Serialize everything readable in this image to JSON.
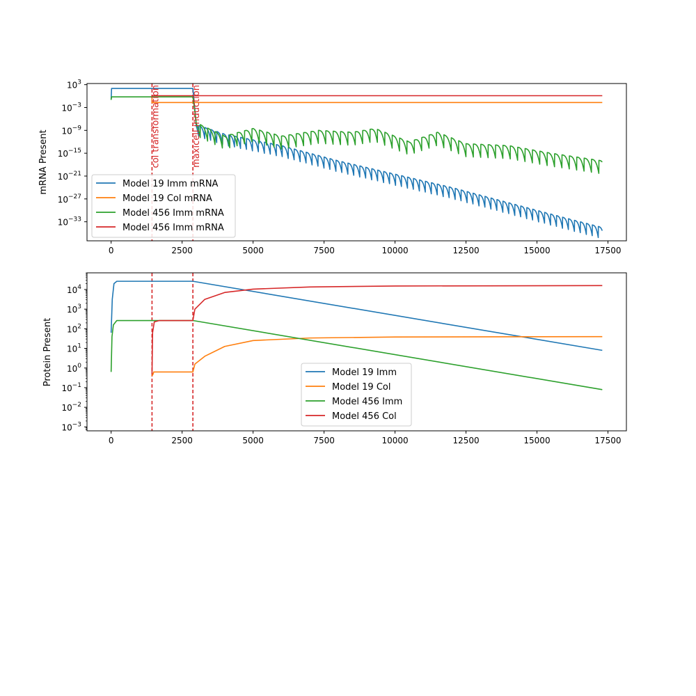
{
  "chart_data": [
    {
      "type": "line",
      "ylabel": "mRNA Present",
      "xlabel": "",
      "yscale": "log",
      "xlim": [
        -850,
        18150
      ],
      "ylim_exp": [
        -38,
        3.3
      ],
      "xticks": [
        0,
        2500,
        5000,
        7500,
        10000,
        12500,
        15000,
        17500
      ],
      "xtick_labels": [
        "0",
        "2500",
        "5000",
        "7500",
        "10000",
        "12500",
        "15000",
        "17500"
      ],
      "yticks_exp": [
        3,
        -3,
        -9,
        -15,
        -21,
        -27,
        -33
      ],
      "ytick_labels": [
        {
          "base": "10",
          "exp": "3"
        },
        {
          "base": "10",
          "exp": "−3"
        },
        {
          "base": "10",
          "exp": "−9"
        },
        {
          "base": "10",
          "exp": "−15"
        },
        {
          "base": "10",
          "exp": "−21"
        },
        {
          "base": "10",
          "exp": "−27"
        },
        {
          "base": "10",
          "exp": "−33"
        }
      ],
      "legend_position": "lower-left",
      "vlines": [
        {
          "x": 1440,
          "label": "col transformation",
          "color": "#d62728"
        },
        {
          "x": 2880,
          "label": "maxicell induction",
          "color": "#d62728"
        }
      ],
      "series": [
        {
          "name": "Model 19 Imm mRNA",
          "color": "#1f77b4",
          "kind": "decay_osc",
          "flat_start": 0,
          "flat_end": 2880,
          "flat_log": 2.0,
          "rise_start": -1.0,
          "decay_points": [
            [
              2880,
              2.0
            ],
            [
              3000,
              -7.5
            ],
            [
              4000,
              -10.0
            ],
            [
              6000,
              -13.0
            ],
            [
              8000,
              -17.0
            ],
            [
              10000,
              -20.5
            ],
            [
              12000,
              -24.0
            ],
            [
              14000,
              -28.0
            ],
            [
              16000,
              -32.0
            ],
            [
              17300,
              -34.5
            ]
          ],
          "osc_period": 210,
          "osc_depth": 3.0
        },
        {
          "name": "Model 19 Col mRNA",
          "color": "#ff7f0e",
          "kind": "step",
          "points": [
            [
              1440,
              -0.5
            ],
            [
              1440,
              -1.7
            ],
            [
              17300,
              -1.7
            ]
          ]
        },
        {
          "name": "Model 456 Imm mRNA",
          "color": "#2ca02c",
          "kind": "decay_osc",
          "flat_start": 0,
          "flat_end": 2880,
          "flat_log": -0.2,
          "rise_start": -1.0,
          "decay_points": [
            [
              2880,
              -0.2
            ],
            [
              3000,
              -7.0
            ],
            [
              4000,
              -10.5
            ],
            [
              5000,
              -8.5
            ],
            [
              6000,
              -10.5
            ],
            [
              7300,
              -9.0
            ],
            [
              8500,
              -9.5
            ],
            [
              9300,
              -8.5
            ],
            [
              10500,
              -12.0
            ],
            [
              11500,
              -9.5
            ],
            [
              12500,
              -12.5
            ],
            [
              14000,
              -13.0
            ],
            [
              15500,
              -15.0
            ],
            [
              17300,
              -17.0
            ]
          ],
          "osc_period": 260,
          "osc_depth": 3.5
        },
        {
          "name": "Model 456 Imm mRNA",
          "color": "#d62728",
          "kind": "step",
          "points": [
            [
              1440,
              -0.2
            ],
            [
              1440,
              0.1
            ],
            [
              17300,
              0.1
            ]
          ]
        }
      ]
    },
    {
      "type": "line",
      "ylabel": "Protein Present",
      "xlabel": "",
      "yscale": "log",
      "xlim": [
        -850,
        18150
      ],
      "ylim_exp": [
        -3.2,
        4.85
      ],
      "xticks": [
        0,
        2500,
        5000,
        7500,
        10000,
        12500,
        15000,
        17500
      ],
      "xtick_labels": [
        "0",
        "2500",
        "5000",
        "7500",
        "10000",
        "12500",
        "15000",
        "17500"
      ],
      "yticks_exp": [
        4,
        3,
        2,
        1,
        0,
        -1,
        -2,
        -3
      ],
      "ytick_labels": [
        {
          "base": "10",
          "exp": "4"
        },
        {
          "base": "10",
          "exp": "3"
        },
        {
          "base": "10",
          "exp": "2"
        },
        {
          "base": "10",
          "exp": "1"
        },
        {
          "base": "10",
          "exp": "0"
        },
        {
          "base": "10",
          "exp": "−1"
        },
        {
          "base": "10",
          "exp": "−2"
        },
        {
          "base": "10",
          "exp": "−3"
        }
      ],
      "legend_position": "center",
      "vlines": [
        {
          "x": 1440,
          "label": "",
          "color": "#d62728"
        },
        {
          "x": 2880,
          "label": "",
          "color": "#d62728"
        }
      ],
      "series": [
        {
          "name": "Model 19 Imm",
          "color": "#1f77b4",
          "points": [
            [
              0,
              1.8
            ],
            [
              40,
              3.5
            ],
            [
              100,
              4.3
            ],
            [
              200,
              4.42
            ],
            [
              2880,
              4.42
            ],
            [
              17300,
              0.9
            ]
          ]
        },
        {
          "name": "Model 19 Col",
          "color": "#ff7f0e",
          "points": [
            [
              1440,
              -0.4
            ],
            [
              1480,
              -0.3
            ],
            [
              1500,
              -0.2
            ],
            [
              2880,
              -0.2
            ],
            [
              2950,
              0.2
            ],
            [
              3300,
              0.6
            ],
            [
              4000,
              1.1
            ],
            [
              5000,
              1.4
            ],
            [
              7000,
              1.53
            ],
            [
              10000,
              1.58
            ],
            [
              17300,
              1.6
            ]
          ]
        },
        {
          "name": "Model 456 Imm",
          "color": "#2ca02c",
          "points": [
            [
              0,
              -0.2
            ],
            [
              30,
              1.6
            ],
            [
              80,
              2.2
            ],
            [
              200,
              2.42
            ],
            [
              2880,
              2.42
            ],
            [
              17300,
              -1.1
            ]
          ]
        },
        {
          "name": "Model 456 Col",
          "color": "#d62728",
          "points": [
            [
              1440,
              -0.3
            ],
            [
              1460,
              1.8
            ],
            [
              1520,
              2.35
            ],
            [
              1700,
              2.42
            ],
            [
              2880,
              2.42
            ],
            [
              2950,
              3.0
            ],
            [
              3300,
              3.5
            ],
            [
              4000,
              3.85
            ],
            [
              5000,
              4.02
            ],
            [
              7000,
              4.13
            ],
            [
              10000,
              4.18
            ],
            [
              17300,
              4.2
            ]
          ]
        }
      ]
    }
  ]
}
